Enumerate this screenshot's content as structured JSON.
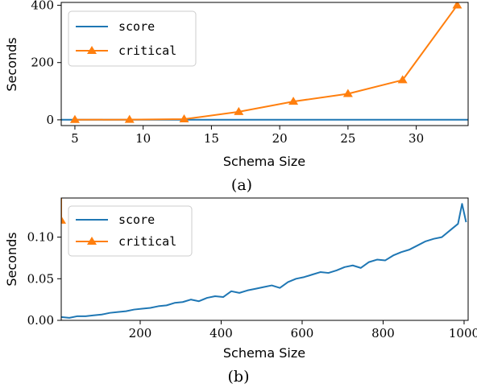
{
  "colors": {
    "score": "#1f77b4",
    "critical": "#ff7f0e"
  },
  "chart_data": [
    {
      "type": "line",
      "caption": "(a)",
      "xlabel": "Schema Size",
      "ylabel": "Seconds",
      "xlim": [
        4,
        33.8
      ],
      "ylim": [
        -20,
        410
      ],
      "xticks": [
        5,
        10,
        15,
        20,
        25,
        30
      ],
      "yticks": [
        0,
        200,
        400
      ],
      "grid": false,
      "legend": "top-left",
      "series": [
        {
          "name": "score",
          "marker": "none",
          "x": [
            4,
            33.8
          ],
          "y": [
            0.5,
            0.5
          ]
        },
        {
          "name": "critical",
          "marker": "triangle",
          "x": [
            5,
            9,
            13,
            17,
            21,
            25,
            29,
            33
          ],
          "y": [
            0.3,
            0.8,
            2.5,
            28,
            64,
            91,
            139,
            400
          ]
        }
      ]
    },
    {
      "type": "line",
      "caption": "(b)",
      "xlabel": "Schema Size",
      "ylabel": "Seconds",
      "xlim": [
        5,
        1010
      ],
      "ylim": [
        0,
        0.147
      ],
      "xticks": [
        200,
        400,
        600,
        800,
        1000
      ],
      "yticks": [
        "0.00",
        "0.05",
        "0.10"
      ],
      "grid": false,
      "legend": "top-left",
      "series": [
        {
          "name": "score",
          "marker": "none",
          "x": [
            5,
            25,
            45,
            65,
            85,
            105,
            125,
            145,
            165,
            185,
            205,
            225,
            245,
            265,
            285,
            305,
            325,
            345,
            365,
            385,
            405,
            425,
            445,
            465,
            485,
            505,
            525,
            545,
            565,
            585,
            605,
            625,
            645,
            665,
            685,
            705,
            725,
            745,
            765,
            785,
            805,
            825,
            845,
            865,
            885,
            905,
            925,
            945,
            965,
            985,
            995,
            1005
          ],
          "y": [
            0.004,
            0.003,
            0.005,
            0.005,
            0.006,
            0.007,
            0.009,
            0.01,
            0.011,
            0.013,
            0.014,
            0.015,
            0.017,
            0.018,
            0.021,
            0.022,
            0.025,
            0.023,
            0.027,
            0.029,
            0.028,
            0.035,
            0.033,
            0.036,
            0.038,
            0.04,
            0.042,
            0.039,
            0.046,
            0.05,
            0.052,
            0.055,
            0.058,
            0.057,
            0.06,
            0.064,
            0.066,
            0.063,
            0.07,
            0.073,
            0.072,
            0.078,
            0.082,
            0.085,
            0.09,
            0.095,
            0.098,
            0.1,
            0.108,
            0.116,
            0.14,
            0.118
          ]
        },
        {
          "name": "critical",
          "marker": "triangle",
          "x": [
            5,
            5
          ],
          "y": [
            0.12,
            0.147
          ]
        }
      ]
    }
  ]
}
